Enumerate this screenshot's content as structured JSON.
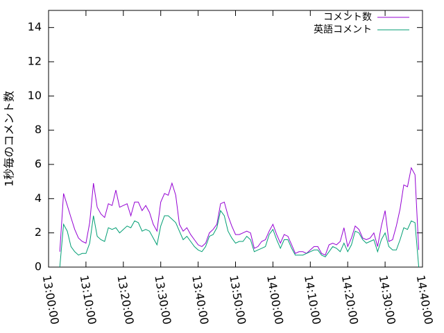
{
  "chart_data": {
    "type": "line",
    "ylabel": "1秒毎のコメント数",
    "x": [
      "13:03:00",
      "13:04:00",
      "13:05:00",
      "13:06:00",
      "13:07:00",
      "13:08:00",
      "13:09:00",
      "13:10:00",
      "13:11:00",
      "13:12:00",
      "13:13:00",
      "13:14:00",
      "13:15:00",
      "13:16:00",
      "13:17:00",
      "13:18:00",
      "13:19:00",
      "13:20:00",
      "13:21:00",
      "13:22:00",
      "13:23:00",
      "13:24:00",
      "13:25:00",
      "13:26:00",
      "13:27:00",
      "13:28:00",
      "13:29:00",
      "13:30:00",
      "13:31:00",
      "13:32:00",
      "13:33:00",
      "13:34:00",
      "13:35:00",
      "13:36:00",
      "13:37:00",
      "13:38:00",
      "13:39:00",
      "13:40:00",
      "13:41:00",
      "13:42:00",
      "13:43:00",
      "13:44:00",
      "13:45:00",
      "13:46:00",
      "13:47:00",
      "13:48:00",
      "13:49:00",
      "13:50:00",
      "13:51:00",
      "13:52:00",
      "13:53:00",
      "13:54:00",
      "13:55:00",
      "13:56:00",
      "13:57:00",
      "13:58:00",
      "13:59:00",
      "14:00:00",
      "14:01:00",
      "14:02:00",
      "14:03:00",
      "14:04:00",
      "14:05:00",
      "14:06:00",
      "14:07:00",
      "14:08:00",
      "14:09:00",
      "14:10:00",
      "14:11:00",
      "14:12:00",
      "14:13:00",
      "14:14:00",
      "14:15:00",
      "14:16:00",
      "14:17:00",
      "14:18:00",
      "14:19:00",
      "14:20:00",
      "14:21:00",
      "14:22:00",
      "14:23:00",
      "14:24:00",
      "14:25:00",
      "14:26:00",
      "14:27:00",
      "14:28:00",
      "14:29:00",
      "14:30:00",
      "14:31:00",
      "14:32:00",
      "14:33:00",
      "14:34:00",
      "14:35:00",
      "14:36:00",
      "14:37:00",
      "14:38:00",
      "14:39:00"
    ],
    "series": [
      {
        "name": "コメント数",
        "color": "#9400d3",
        "values": [
          0.9,
          4.3,
          3.6,
          2.9,
          2.2,
          1.7,
          1.5,
          1.4,
          2.6,
          4.9,
          3.5,
          3.1,
          2.9,
          3.7,
          3.6,
          4.5,
          3.5,
          3.6,
          3.7,
          3.0,
          3.8,
          3.8,
          3.3,
          3.6,
          3.2,
          2.5,
          2.1,
          3.8,
          4.3,
          4.2,
          4.9,
          4.2,
          2.5,
          2.1,
          2.3,
          1.9,
          1.6,
          1.3,
          1.2,
          1.4,
          2.0,
          2.2,
          2.5,
          3.7,
          3.8,
          3.0,
          2.4,
          1.9,
          1.9,
          2.0,
          2.1,
          2.0,
          1.1,
          1.2,
          1.5,
          1.6,
          2.1,
          2.5,
          1.9,
          1.4,
          1.9,
          1.8,
          1.3,
          0.8,
          0.9,
          0.9,
          0.8,
          1.0,
          1.2,
          1.2,
          0.8,
          0.7,
          1.3,
          1.4,
          1.3,
          1.5,
          2.3,
          1.2,
          1.7,
          2.4,
          2.2,
          1.7,
          1.6,
          1.7,
          2.0,
          1.2,
          2.4,
          3.3,
          1.5,
          1.6,
          2.4,
          3.4,
          4.8,
          4.7,
          5.8,
          5.4,
          1.0
        ]
      },
      {
        "name": "英語コメント",
        "color": "#009e73",
        "values": [
          0,
          2.5,
          2.1,
          1.2,
          0.9,
          0.7,
          0.8,
          0.8,
          1.4,
          3.0,
          1.8,
          1.6,
          1.5,
          2.3,
          2.2,
          2.3,
          2.0,
          2.2,
          2.4,
          2.3,
          2.7,
          2.6,
          2.1,
          2.2,
          2.1,
          1.7,
          1.3,
          2.4,
          3.0,
          3.0,
          2.8,
          2.6,
          2.1,
          1.6,
          1.8,
          1.5,
          1.2,
          1.0,
          0.9,
          1.2,
          1.8,
          1.9,
          2.3,
          3.3,
          3.0,
          2.1,
          1.7,
          1.4,
          1.5,
          1.5,
          1.8,
          1.6,
          0.9,
          1.0,
          1.1,
          1.2,
          1.9,
          2.2,
          1.6,
          1.1,
          1.6,
          1.6,
          1.1,
          0.7,
          0.7,
          0.7,
          0.8,
          0.9,
          1.0,
          1.0,
          0.7,
          0.6,
          0.9,
          1.2,
          1.1,
          0.9,
          1.4,
          0.9,
          1.3,
          2.1,
          2.0,
          1.6,
          1.4,
          1.5,
          1.6,
          0.9,
          1.6,
          2.0,
          1.2,
          1.0,
          1.0,
          1.6,
          2.3,
          2.2,
          2.7,
          2.6,
          0
        ]
      }
    ],
    "xlim": [
      "13:00:00",
      "14:40:00"
    ],
    "xticks": [
      "13:00:00",
      "13:10:00",
      "13:20:00",
      "13:30:00",
      "13:40:00",
      "13:50:00",
      "14:00:00",
      "14:10:00",
      "14:20:00",
      "14:30:00",
      "14:40:00"
    ],
    "ylim": [
      0,
      15
    ],
    "yticks": [
      0,
      2,
      4,
      6,
      8,
      10,
      12,
      14
    ],
    "grid": false,
    "legend": "top-right"
  }
}
